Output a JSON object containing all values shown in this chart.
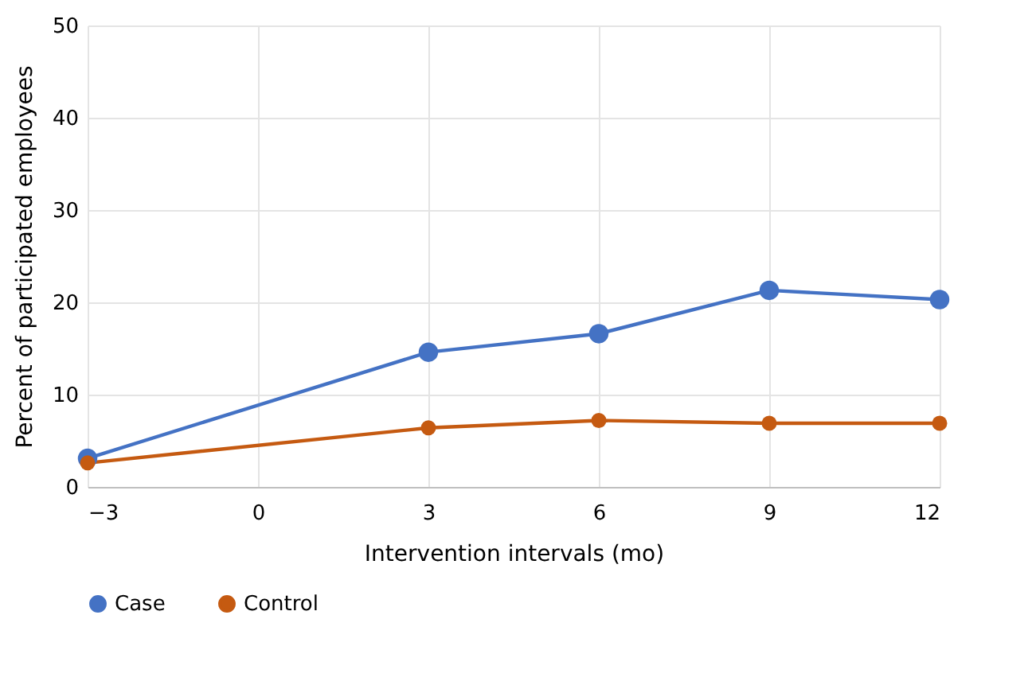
{
  "chart_data": {
    "type": "line",
    "xlabel": "Intervention intervals (mo)",
    "ylabel": "Percent of participated employees",
    "x": [
      -3,
      3,
      6,
      9,
      12
    ],
    "series": [
      {
        "name": "Case",
        "color": "#4472c4",
        "values": [
          3.1,
          14.6,
          16.6,
          21.3,
          20.3
        ]
      },
      {
        "name": "Control",
        "color": "#c55a11",
        "values": [
          2.6,
          6.4,
          7.2,
          6.9,
          6.9
        ]
      }
    ],
    "xlim": [
      -3,
      12
    ],
    "xticks": [
      -3,
      0,
      3,
      6,
      9,
      12
    ],
    "ylim": [
      0,
      50
    ],
    "yticks": [
      0,
      10,
      20,
      30,
      40,
      50
    ],
    "grid": true,
    "legend": "bottom",
    "marker": "circle",
    "line_style": "solid"
  }
}
